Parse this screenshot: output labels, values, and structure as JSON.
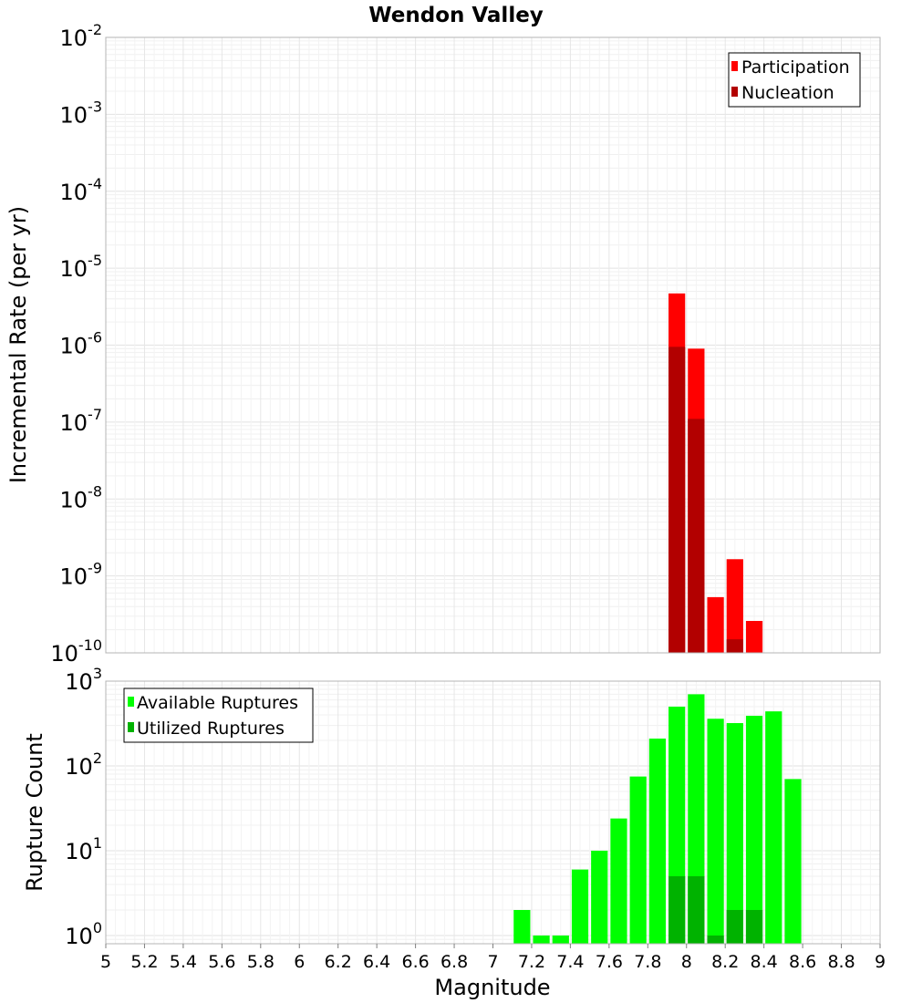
{
  "chart_data": [
    {
      "type": "bar",
      "title": "Wendon Valley",
      "ylabel": "Incremental Rate (per yr)",
      "yscale": "log",
      "ylim": [
        1e-10,
        0.01
      ],
      "xlim": [
        5,
        9
      ],
      "legend_position": "top-right",
      "legend": [
        {
          "label": "Participation",
          "color": "#ff0000"
        },
        {
          "label": "Nucleation",
          "color": "#b20000"
        }
      ],
      "y_tick_labels": [
        {
          "base": "10",
          "exp": "-2"
        },
        {
          "base": "10",
          "exp": "-3"
        },
        {
          "base": "10",
          "exp": "-4"
        },
        {
          "base": "10",
          "exp": "-5"
        },
        {
          "base": "10",
          "exp": "-6"
        },
        {
          "base": "10",
          "exp": "-7"
        },
        {
          "base": "10",
          "exp": "-8"
        },
        {
          "base": "10",
          "exp": "-9"
        },
        {
          "base": "10",
          "exp": "-10"
        }
      ],
      "bin_width": 0.1,
      "series": [
        {
          "name": "Participation",
          "color": "#ff0000",
          "x": [
            7.95,
            8.05,
            8.15,
            8.25,
            8.35
          ],
          "values": [
            4.7e-06,
            9e-07,
            5.3e-10,
            1.65e-09,
            2.6e-10
          ]
        },
        {
          "name": "Nucleation",
          "color": "#b20000",
          "x": [
            7.95,
            8.05,
            8.25
          ],
          "values": [
            9.5e-07,
            1.1e-07,
            1.5e-10
          ]
        }
      ]
    },
    {
      "type": "bar",
      "ylabel": "Rupture Count",
      "xlabel": "Magnitude",
      "yscale": "log",
      "ylim": [
        0.8,
        1000
      ],
      "xlim": [
        5,
        9
      ],
      "legend_position": "top-left",
      "legend": [
        {
          "label": "Available Ruptures",
          "color": "#00ff00"
        },
        {
          "label": "Utilized Ruptures",
          "color": "#00b200"
        }
      ],
      "y_tick_labels": [
        {
          "base": "10",
          "exp": "3"
        },
        {
          "base": "10",
          "exp": "2"
        },
        {
          "base": "10",
          "exp": "1"
        },
        {
          "base": "10",
          "exp": "0"
        }
      ],
      "x_ticks": [
        "5",
        "5.2",
        "5.4",
        "5.6",
        "5.8",
        "6",
        "6.2",
        "6.4",
        "6.6",
        "6.8",
        "7",
        "7.2",
        "7.4",
        "7.6",
        "7.8",
        "8",
        "8.2",
        "8.4",
        "8.6",
        "8.8",
        "9"
      ],
      "bin_width": 0.1,
      "series": [
        {
          "name": "Available Ruptures",
          "color": "#00ff00",
          "x": [
            7.15,
            7.25,
            7.35,
            7.45,
            7.55,
            7.65,
            7.75,
            7.85,
            7.95,
            8.05,
            8.15,
            8.25,
            8.35,
            8.45,
            8.55
          ],
          "values": [
            2,
            1,
            1,
            6,
            10,
            24,
            75,
            210,
            500,
            700,
            360,
            320,
            390,
            440,
            70
          ]
        },
        {
          "name": "Utilized Ruptures",
          "color": "#00b200",
          "x": [
            7.95,
            8.05,
            8.15,
            8.25,
            8.35
          ],
          "values": [
            5,
            5,
            1,
            2,
            2
          ]
        }
      ]
    }
  ]
}
